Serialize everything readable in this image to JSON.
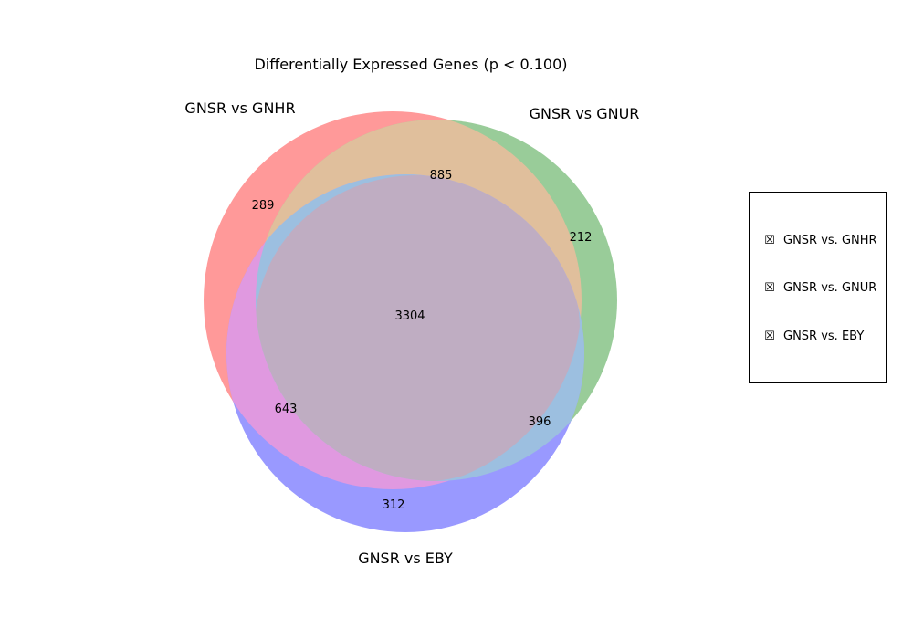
{
  "title": "Differentially Expressed Genes (p < 0.100)",
  "sets": [
    {
      "id": "A",
      "label": "GNSR vs GNHR",
      "color": "#ff9999"
    },
    {
      "id": "B",
      "label": "GNSR vs GNUR",
      "color": "#99cc99"
    },
    {
      "id": "C",
      "label": "GNSR vs EBY",
      "color": "#9999ff"
    }
  ],
  "region_colors": {
    "AB": "#e0bf9c",
    "AC": "#e099e0",
    "BC": "#9cbfe0",
    "ABC": "#bfadc2"
  },
  "regions": {
    "A_only": "289",
    "B_only": "212",
    "C_only": "312",
    "AB_only": "885",
    "AC_only": "643",
    "BC_only": "396",
    "ABC": "3304"
  },
  "legend": {
    "items": [
      "GNSR vs. GNHR",
      "GNSR vs. GNUR",
      "GNSR vs. EBY"
    ],
    "marker": "☒"
  }
}
